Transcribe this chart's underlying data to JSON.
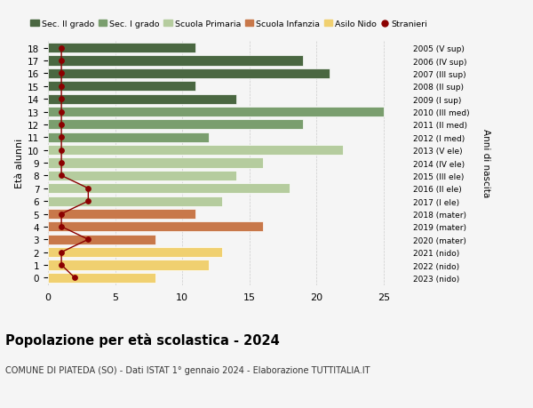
{
  "ages": [
    18,
    17,
    16,
    15,
    14,
    13,
    12,
    11,
    10,
    9,
    8,
    7,
    6,
    5,
    4,
    3,
    2,
    1,
    0
  ],
  "years": [
    "2005 (V sup)",
    "2006 (IV sup)",
    "2007 (III sup)",
    "2008 (II sup)",
    "2009 (I sup)",
    "2010 (III med)",
    "2011 (II med)",
    "2012 (I med)",
    "2013 (V ele)",
    "2014 (IV ele)",
    "2015 (III ele)",
    "2016 (II ele)",
    "2017 (I ele)",
    "2018 (mater)",
    "2019 (mater)",
    "2020 (mater)",
    "2021 (nido)",
    "2022 (nido)",
    "2023 (nido)"
  ],
  "bar_values": [
    11,
    19,
    21,
    11,
    14,
    25,
    19,
    12,
    22,
    16,
    14,
    18,
    13,
    11,
    16,
    8,
    13,
    12,
    8
  ],
  "bar_colors": [
    "#4a6741",
    "#4a6741",
    "#4a6741",
    "#4a6741",
    "#4a6741",
    "#7a9e6e",
    "#7a9e6e",
    "#7a9e6e",
    "#b5cc9e",
    "#b5cc9e",
    "#b5cc9e",
    "#b5cc9e",
    "#b5cc9e",
    "#c8784a",
    "#c8784a",
    "#c8784a",
    "#f0d070",
    "#f0d070",
    "#f0d070"
  ],
  "stranieri": [
    1,
    1,
    1,
    1,
    1,
    1,
    1,
    1,
    1,
    1,
    1,
    3,
    3,
    1,
    1,
    3,
    1,
    1,
    2
  ],
  "stranieri_color": "#8b0000",
  "title": "Popolazione per età scolastica - 2024",
  "subtitle": "COMUNE DI PIATEDA (SO) - Dati ISTAT 1° gennaio 2024 - Elaborazione TUTTITALIA.IT",
  "ylabel": "Età alunni",
  "right_ylabel": "Anni di nascita",
  "xlim": [
    0,
    27
  ],
  "xticks": [
    0,
    5,
    10,
    15,
    20,
    25
  ],
  "legend_labels": [
    "Sec. II grado",
    "Sec. I grado",
    "Scuola Primaria",
    "Scuola Infanzia",
    "Asilo Nido",
    "Stranieri"
  ],
  "legend_colors": [
    "#4a6741",
    "#7a9e6e",
    "#b5cc9e",
    "#c8784a",
    "#f0d070",
    "#8b0000"
  ],
  "background_color": "#f5f5f5"
}
